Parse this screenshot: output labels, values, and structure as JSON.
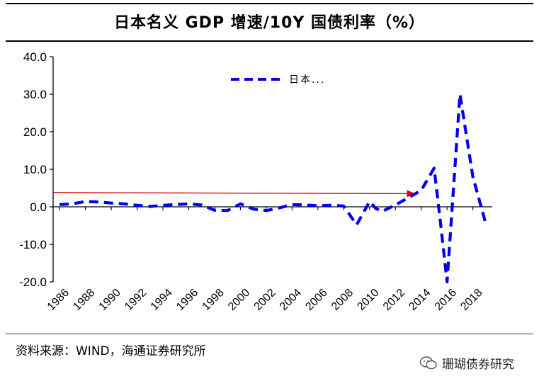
{
  "chart_data": {
    "type": "line",
    "title": "日本名义 GDP 增速/10Y 国债利率（%）",
    "xlabel": "",
    "ylabel": "",
    "ylim": [
      -20,
      40
    ],
    "yticks": [
      "40.0",
      "30.0",
      "20.0",
      "10.0",
      "0.0",
      "-10.0",
      "-20.0"
    ],
    "ytick_values": [
      40,
      30,
      20,
      10,
      0,
      -10,
      -20
    ],
    "xticks": [
      "1986",
      "1988",
      "1990",
      "1992",
      "1994",
      "1996",
      "1998",
      "2000",
      "2002",
      "2004",
      "2006",
      "2008",
      "2010",
      "2012",
      "2014",
      "2016",
      "2018"
    ],
    "xtick_values": [
      1986,
      1988,
      1990,
      1992,
      1994,
      1996,
      1998,
      2000,
      2002,
      2004,
      2006,
      2008,
      2010,
      2012,
      2014,
      2016,
      2018
    ],
    "xlim": [
      1985.5,
      2019.5
    ],
    "legend": {
      "label": "日本...",
      "position": "top-center"
    },
    "series": [
      {
        "name": "日本...",
        "color": "#0000ee",
        "style": "dashed",
        "x": [
          1986,
          1987,
          1988,
          1989,
          1990,
          1991,
          1992,
          1993,
          1994,
          1995,
          1996,
          1997,
          1998,
          1999,
          2000,
          2001,
          2002,
          2003,
          2004,
          2005,
          2006,
          2007,
          2008,
          2009,
          2010,
          2010.5,
          2011,
          2012,
          2013,
          2014,
          2015,
          2015.5,
          2016,
          2016.5,
          2017,
          2018,
          2019
        ],
        "values": [
          0.6,
          0.8,
          1.4,
          1.3,
          1.0,
          0.8,
          0.4,
          0.1,
          0.4,
          0.6,
          0.8,
          0.5,
          -0.9,
          -1.0,
          0.8,
          -0.6,
          -1.0,
          -0.3,
          0.6,
          0.5,
          0.3,
          0.4,
          0.2,
          -4.8,
          1.4,
          -0.5,
          -1.2,
          0.5,
          2.4,
          4.4,
          10.3,
          -4.5,
          -20.0,
          5.0,
          30.0,
          8.0,
          -4.5
        ]
      }
    ],
    "annotations": [
      {
        "type": "arrow",
        "color": "#e00000",
        "from": {
          "x": 1985.5,
          "y": 3.8
        },
        "to": {
          "x": 2013.5,
          "y": 3.5
        }
      }
    ]
  },
  "footer": {
    "source": "资料来源：WIND，海通证券研究所",
    "watermark": "珊瑚债券研究"
  }
}
